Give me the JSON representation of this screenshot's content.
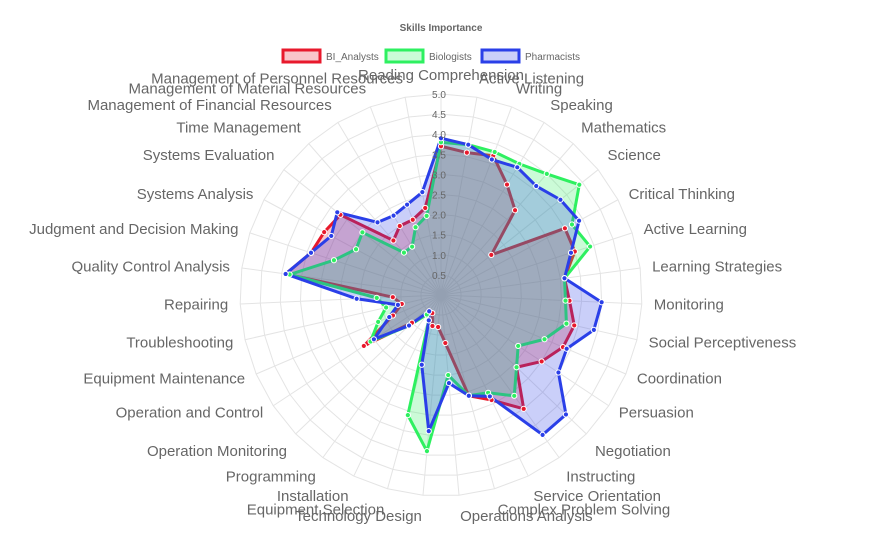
{
  "chart_data": {
    "type": "radar",
    "title": "Skills Importance",
    "legend_position": "top-center",
    "rlim": [
      0,
      5
    ],
    "ticks": [
      "0.5",
      "1.0",
      "1.5",
      "2.0",
      "2.5",
      "3.0",
      "3.5",
      "4.0",
      "4.5",
      "5.0"
    ],
    "tick_values": [
      0.5,
      1,
      1.5,
      2,
      2.5,
      3,
      3.5,
      4,
      4.5,
      5
    ],
    "categories": [
      "Reading Comprehension",
      "Active Listening",
      "Writing",
      "Speaking",
      "Mathematics",
      "Science",
      "Critical Thinking",
      "Active Learning",
      "Learning Strategies",
      "Monitoring",
      "Social Perceptiveness",
      "Coordination",
      "Persuasion",
      "Negotiation",
      "Instructing",
      "Service Orientation",
      "Complex Problem Solving",
      "Operations Analysis",
      "Technology Design",
      "Equipment Selection",
      "Installation",
      "Programming",
      "Operation Monitoring",
      "Operation and Control",
      "Equipment Maintenance",
      "Troubleshooting",
      "Repairing",
      "Quality Control Analysis",
      "Judgment and Decision Making",
      "Systems Analysis",
      "Systems Evaluation",
      "Time Management",
      "Management of Financial Resources",
      "Management of Material Resources",
      "Management of Personnel Resources"
    ],
    "series": [
      {
        "name": "BI_Analysts",
        "color": "#e8192c",
        "fill": "rgba(232,25,44,0.25)",
        "values": [
          3.7,
          3.6,
          3.7,
          3.2,
          2.8,
          1.6,
          3.5,
          3.5,
          3.1,
          3.2,
          3.4,
          3.3,
          3.0,
          2.6,
          3.5,
          2.9,
          2.6,
          1.2,
          0.8,
          0.8,
          0.5,
          0.6,
          1.0,
          2.3,
          1.3,
          1.0,
          1.2,
          3.9,
          3.4,
          3.3,
          3.2,
          1.8,
          2.0,
          2.0,
          2.2
        ]
      },
      {
        "name": "Biologists",
        "color": "#2ef060",
        "fill": "rgba(46,240,96,0.25)",
        "values": [
          3.8,
          3.8,
          3.8,
          3.8,
          4.0,
          4.4,
          3.7,
          3.9,
          3.1,
          3.1,
          3.2,
          2.8,
          2.3,
          2.6,
          3.1,
          2.7,
          2.6,
          2.0,
          3.9,
          3.1,
          0.7,
          0.6,
          1.1,
          2.1,
          1.7,
          1.4,
          1.6,
          3.8,
          2.8,
          2.4,
          2.5,
          1.4,
          1.4,
          1.8,
          2.0
        ]
      },
      {
        "name": "Pharmacists",
        "color": "#2a3fe8",
        "fill": "rgba(42,63,232,0.25)",
        "values": [
          3.9,
          3.8,
          3.6,
          3.7,
          3.6,
          3.8,
          3.9,
          3.4,
          3.1,
          4.0,
          3.9,
          3.4,
          3.5,
          4.3,
          4.3,
          2.8,
          2.6,
          2.2,
          3.4,
          1.8,
          0.7,
          0.5,
          1.1,
          2.0,
          1.4,
          1.1,
          2.1,
          3.9,
          3.4,
          3.1,
          3.3,
          2.4,
          2.3,
          2.4,
          2.6
        ]
      }
    ]
  }
}
